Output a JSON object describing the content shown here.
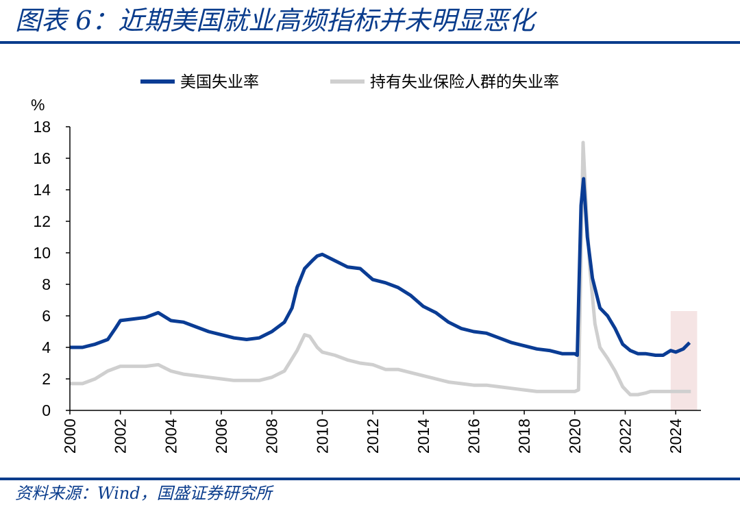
{
  "header": {
    "title": "图表 6：近期美国就业高频指标并未明显恶化"
  },
  "footer": {
    "source": "资料来源：Wind，国盛证券研究所"
  },
  "colors": {
    "brand": "#0a3c8c",
    "series_unemployment": "#0a3c94",
    "series_insured": "#cfcfcf",
    "highlight": "#f5e4e4"
  },
  "chart_data": {
    "type": "line",
    "title": "",
    "xlabel": "",
    "ylabel": "%",
    "xlim": [
      2000,
      2025
    ],
    "ylim": [
      0,
      18
    ],
    "x_ticks": [
      "2000",
      "2002",
      "2004",
      "2006",
      "2008",
      "2010",
      "2012",
      "2014",
      "2016",
      "2018",
      "2020",
      "2022",
      "2024"
    ],
    "y_ticks": [
      "0",
      "2",
      "4",
      "6",
      "8",
      "10",
      "12",
      "14",
      "16",
      "18"
    ],
    "grid": false,
    "legend_position": "top",
    "highlight_region": [
      2023.8,
      2024.85
    ],
    "series": [
      {
        "name": "美国失业率",
        "color": "#0a3c94",
        "points": [
          [
            2000.0,
            4.0
          ],
          [
            2000.5,
            4.0
          ],
          [
            2001.0,
            4.2
          ],
          [
            2001.5,
            4.5
          ],
          [
            2001.8,
            5.2
          ],
          [
            2002.0,
            5.7
          ],
          [
            2002.5,
            5.8
          ],
          [
            2003.0,
            5.9
          ],
          [
            2003.5,
            6.2
          ],
          [
            2004.0,
            5.7
          ],
          [
            2004.5,
            5.6
          ],
          [
            2005.0,
            5.3
          ],
          [
            2005.5,
            5.0
          ],
          [
            2006.0,
            4.8
          ],
          [
            2006.5,
            4.6
          ],
          [
            2007.0,
            4.5
          ],
          [
            2007.5,
            4.6
          ],
          [
            2008.0,
            5.0
          ],
          [
            2008.5,
            5.6
          ],
          [
            2008.8,
            6.5
          ],
          [
            2009.0,
            7.8
          ],
          [
            2009.3,
            9.0
          ],
          [
            2009.6,
            9.5
          ],
          [
            2009.8,
            9.8
          ],
          [
            2010.0,
            9.9
          ],
          [
            2010.5,
            9.5
          ],
          [
            2011.0,
            9.1
          ],
          [
            2011.5,
            9.0
          ],
          [
            2012.0,
            8.3
          ],
          [
            2012.5,
            8.1
          ],
          [
            2013.0,
            7.8
          ],
          [
            2013.5,
            7.3
          ],
          [
            2014.0,
            6.6
          ],
          [
            2014.5,
            6.2
          ],
          [
            2015.0,
            5.6
          ],
          [
            2015.5,
            5.2
          ],
          [
            2016.0,
            5.0
          ],
          [
            2016.5,
            4.9
          ],
          [
            2017.0,
            4.6
          ],
          [
            2017.5,
            4.3
          ],
          [
            2018.0,
            4.1
          ],
          [
            2018.5,
            3.9
          ],
          [
            2019.0,
            3.8
          ],
          [
            2019.5,
            3.6
          ],
          [
            2020.0,
            3.6
          ],
          [
            2020.1,
            3.5
          ],
          [
            2020.25,
            13.0
          ],
          [
            2020.35,
            14.7
          ],
          [
            2020.5,
            11.0
          ],
          [
            2020.7,
            8.4
          ],
          [
            2021.0,
            6.5
          ],
          [
            2021.3,
            6.0
          ],
          [
            2021.6,
            5.2
          ],
          [
            2021.9,
            4.2
          ],
          [
            2022.2,
            3.8
          ],
          [
            2022.5,
            3.6
          ],
          [
            2022.8,
            3.6
          ],
          [
            2023.2,
            3.5
          ],
          [
            2023.5,
            3.5
          ],
          [
            2023.8,
            3.8
          ],
          [
            2024.0,
            3.7
          ],
          [
            2024.3,
            3.9
          ],
          [
            2024.55,
            4.3
          ]
        ]
      },
      {
        "name": "持有失业保险人群的失业率",
        "color": "#cfcfcf",
        "points": [
          [
            2000.0,
            1.7
          ],
          [
            2000.5,
            1.7
          ],
          [
            2001.0,
            2.0
          ],
          [
            2001.5,
            2.5
          ],
          [
            2002.0,
            2.8
          ],
          [
            2002.5,
            2.8
          ],
          [
            2003.0,
            2.8
          ],
          [
            2003.5,
            2.9
          ],
          [
            2004.0,
            2.5
          ],
          [
            2004.5,
            2.3
          ],
          [
            2005.0,
            2.2
          ],
          [
            2005.5,
            2.1
          ],
          [
            2006.0,
            2.0
          ],
          [
            2006.5,
            1.9
          ],
          [
            2007.0,
            1.9
          ],
          [
            2007.5,
            1.9
          ],
          [
            2008.0,
            2.1
          ],
          [
            2008.5,
            2.5
          ],
          [
            2009.0,
            3.8
          ],
          [
            2009.3,
            4.8
          ],
          [
            2009.5,
            4.7
          ],
          [
            2009.8,
            4.0
          ],
          [
            2010.0,
            3.7
          ],
          [
            2010.5,
            3.5
          ],
          [
            2011.0,
            3.2
          ],
          [
            2011.5,
            3.0
          ],
          [
            2012.0,
            2.9
          ],
          [
            2012.5,
            2.6
          ],
          [
            2013.0,
            2.6
          ],
          [
            2013.5,
            2.4
          ],
          [
            2014.0,
            2.2
          ],
          [
            2014.5,
            2.0
          ],
          [
            2015.0,
            1.8
          ],
          [
            2015.5,
            1.7
          ],
          [
            2016.0,
            1.6
          ],
          [
            2016.5,
            1.6
          ],
          [
            2017.0,
            1.5
          ],
          [
            2017.5,
            1.4
          ],
          [
            2018.0,
            1.3
          ],
          [
            2018.5,
            1.2
          ],
          [
            2019.0,
            1.2
          ],
          [
            2019.5,
            1.2
          ],
          [
            2020.0,
            1.2
          ],
          [
            2020.15,
            1.3
          ],
          [
            2020.25,
            10.0
          ],
          [
            2020.33,
            17.0
          ],
          [
            2020.45,
            13.0
          ],
          [
            2020.6,
            9.0
          ],
          [
            2020.8,
            5.5
          ],
          [
            2021.0,
            4.0
          ],
          [
            2021.3,
            3.3
          ],
          [
            2021.6,
            2.5
          ],
          [
            2021.9,
            1.5
          ],
          [
            2022.2,
            1.0
          ],
          [
            2022.5,
            1.0
          ],
          [
            2022.8,
            1.1
          ],
          [
            2023.0,
            1.2
          ],
          [
            2023.5,
            1.2
          ],
          [
            2024.0,
            1.2
          ],
          [
            2024.5,
            1.2
          ],
          [
            2024.6,
            1.2
          ]
        ]
      }
    ]
  }
}
